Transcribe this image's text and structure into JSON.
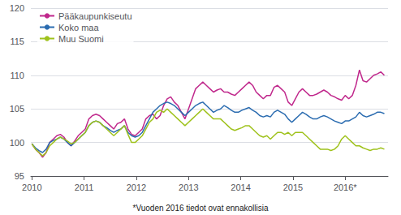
{
  "chart_data": {
    "type": "line",
    "annotations": [
      "*Vuoden 2016 tiedot ovat ennakollisia"
    ],
    "x": [
      2010,
      2010.0681818182,
      2010.1363636364,
      2010.2045454545,
      2010.2727272727,
      2010.3409090909,
      2010.4090909091,
      2010.4772727273,
      2010.5454545455,
      2010.6136363636,
      2010.6818181818,
      2010.75,
      2010.8181818182,
      2010.8863636364,
      2010.9545454545,
      2011.0227272727,
      2011.0909090909,
      2011.1590909091,
      2011.2272727273,
      2011.2954545455,
      2011.3636363636,
      2011.4318181818,
      2011.5,
      2011.5681818182,
      2011.6363636364,
      2011.7045454545,
      2011.7727272727,
      2011.8409090909,
      2011.9090909091,
      2011.9772727273,
      2012.0454545455,
      2012.1136363636,
      2012.1818181818,
      2012.25,
      2012.3181818182,
      2012.3863636364,
      2012.4545454545,
      2012.5227272727,
      2012.5909090909,
      2012.6590909091,
      2012.7272727273,
      2012.7954545455,
      2012.8636363636,
      2012.9318181818,
      2013,
      2013.0681818182,
      2013.1363636364,
      2013.2045454545,
      2013.2727272727,
      2013.3409090909,
      2013.4090909091,
      2013.4772727273,
      2013.5454545455,
      2013.6136363636,
      2013.6818181818,
      2013.75,
      2013.8181818182,
      2013.8863636364,
      2013.9545454545,
      2014.0227272727,
      2014.0909090909,
      2014.1590909091,
      2014.2272727273,
      2014.2954545455,
      2014.3636363636,
      2014.4318181818,
      2014.5,
      2014.5681818182,
      2014.6363636364,
      2014.7045454545,
      2014.7727272727,
      2014.8409090909,
      2014.9090909091,
      2014.9772727273,
      2015.0454545455,
      2015.1136363636,
      2015.1818181818,
      2015.25,
      2015.3181818182,
      2015.3863636364,
      2015.4545454545,
      2015.5227272727,
      2015.5909090909,
      2015.6590909091,
      2015.7272727273,
      2015.7954545455,
      2015.8636363636,
      2015.9318181818,
      2016,
      2016.0681818182,
      2016.1363636364,
      2016.2045454545,
      2016.2727272727,
      2016.3409090909,
      2016.4090909091,
      2016.4772727273,
      2016.5454545455,
      2016.6136363636,
      2016.6818181818,
      2016.75
    ],
    "series": [
      {
        "name": "Pääkaupunkiseutu",
        "color": "#c0288c",
        "values": [
          99.8,
          99.0,
          98.5,
          97.8,
          98.5,
          100.0,
          100.5,
          101.0,
          101.2,
          100.8,
          100.0,
          99.5,
          100.2,
          101.0,
          101.5,
          102.0,
          103.5,
          104.0,
          104.2,
          104.0,
          103.5,
          103.0,
          102.5,
          102.0,
          102.8,
          103.0,
          103.5,
          102.0,
          101.2,
          101.0,
          101.5,
          102.0,
          103.5,
          104.0,
          104.2,
          103.5,
          104.0,
          105.5,
          106.5,
          106.8,
          106.0,
          105.5,
          104.5,
          103.5,
          105.0,
          106.5,
          108.0,
          108.5,
          109.0,
          108.5,
          108.0,
          107.5,
          107.8,
          108.0,
          107.5,
          107.5,
          107.2,
          107.0,
          107.5,
          108.0,
          108.5,
          109.0,
          108.5,
          107.5,
          107.0,
          106.5,
          107.0,
          107.0,
          108.2,
          108.5,
          108.0,
          107.5,
          106.0,
          105.5,
          106.5,
          107.5,
          108.0,
          107.5,
          107.0,
          107.0,
          107.2,
          107.5,
          107.8,
          107.5,
          107.0,
          106.8,
          106.5,
          106.3,
          107.0,
          106.5,
          107.0,
          108.5,
          110.8,
          109.2,
          109.0,
          109.5,
          110.0,
          110.2,
          110.5,
          110.0
        ]
      },
      {
        "name": "Koko maa",
        "color": "#2b6cb0",
        "values": [
          99.8,
          99.2,
          98.8,
          98.5,
          99.0,
          100.0,
          100.3,
          100.5,
          100.8,
          100.5,
          100.0,
          99.5,
          100.0,
          100.5,
          101.0,
          101.5,
          102.5,
          103.0,
          103.2,
          103.0,
          102.5,
          102.2,
          101.8,
          101.5,
          101.8,
          102.0,
          102.5,
          101.5,
          101.0,
          100.8,
          101.0,
          101.5,
          102.5,
          103.5,
          104.5,
          105.0,
          105.5,
          105.8,
          106.0,
          105.8,
          105.5,
          105.0,
          104.5,
          104.0,
          104.5,
          105.0,
          105.5,
          105.8,
          106.0,
          105.5,
          105.0,
          104.5,
          104.8,
          105.0,
          105.5,
          105.2,
          104.8,
          104.5,
          104.5,
          104.8,
          105.0,
          105.2,
          104.8,
          104.5,
          104.0,
          103.8,
          104.0,
          103.8,
          104.5,
          104.8,
          104.5,
          104.2,
          103.5,
          103.0,
          103.5,
          104.0,
          104.5,
          104.2,
          103.8,
          103.5,
          103.5,
          103.8,
          104.0,
          103.8,
          103.5,
          103.2,
          103.0,
          102.8,
          103.2,
          103.2,
          103.5,
          103.8,
          104.5,
          104.0,
          103.8,
          104.0,
          104.2,
          104.5,
          104.5,
          104.3
        ]
      },
      {
        "name": "Muu Suomi",
        "color": "#9fc21c",
        "values": [
          99.8,
          99.0,
          98.5,
          98.0,
          98.5,
          99.5,
          100.0,
          100.5,
          100.8,
          100.5,
          100.2,
          99.8,
          100.0,
          100.5,
          101.0,
          101.5,
          102.5,
          103.0,
          103.2,
          103.0,
          102.5,
          102.0,
          101.5,
          101.0,
          101.5,
          102.0,
          102.5,
          101.2,
          100.0,
          100.0,
          100.5,
          101.0,
          102.0,
          103.0,
          103.5,
          104.5,
          104.8,
          104.5,
          105.0,
          104.5,
          104.0,
          103.5,
          103.0,
          102.5,
          103.0,
          103.5,
          104.0,
          104.5,
          105.0,
          104.5,
          104.0,
          103.5,
          103.5,
          103.5,
          103.0,
          102.5,
          102.0,
          101.8,
          102.0,
          102.2,
          102.5,
          102.5,
          102.0,
          101.5,
          101.0,
          100.8,
          101.0,
          100.5,
          101.0,
          101.5,
          101.5,
          101.2,
          101.5,
          101.0,
          101.5,
          101.5,
          101.5,
          101.0,
          100.5,
          100.0,
          99.5,
          99.0,
          99.0,
          99.0,
          98.8,
          99.0,
          99.5,
          100.5,
          101.0,
          100.5,
          100.0,
          99.5,
          99.5,
          99.2,
          99.0,
          98.8,
          99.0,
          99.0,
          99.2,
          99.0
        ]
      }
    ],
    "xlim": [
      2009.98,
      2016.82
    ],
    "xticks": [
      2010,
      2011,
      2012,
      2013,
      2014,
      2015,
      {
        "value": 2016,
        "label": "2016*"
      }
    ],
    "ylim": [
      95,
      120
    ],
    "yticks": [
      95,
      100,
      105,
      110,
      115,
      120
    ],
    "grid": true,
    "legend": "upper left"
  }
}
